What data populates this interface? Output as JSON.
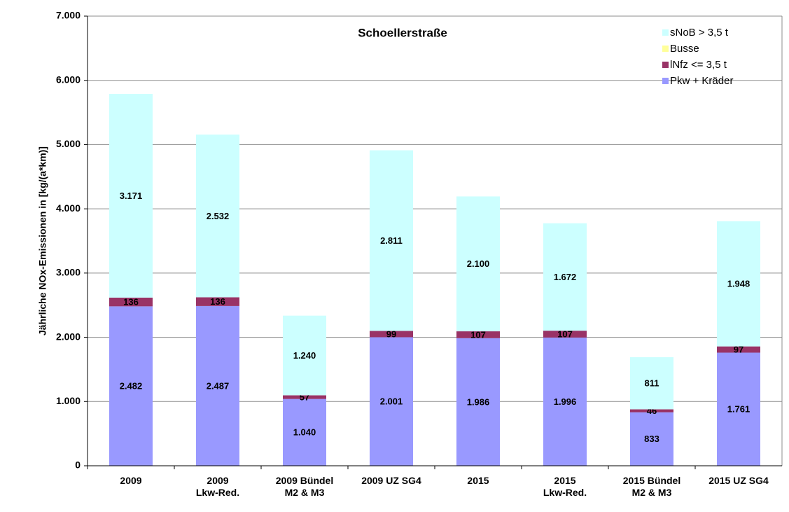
{
  "chart_data": {
    "type": "stacked_bar",
    "title": "Schoellerstraße",
    "y_label": "Jährliche NOx-Emissionen in [kg/(a*km)]",
    "categories": [
      "2009",
      "2009\nLkw-Red.",
      "2009 Bündel\nM2 & M3",
      "2009 UZ SG4",
      "2015",
      "2015\nLkw-Red.",
      "2015 Bündel\nM2 & M3",
      "2015 UZ SG4"
    ],
    "series": [
      {
        "name": "Pkw + Kräder",
        "color": "#9999ff",
        "values": [
          2482,
          2487,
          1040,
          2001,
          1986,
          1996,
          833,
          1761
        ],
        "value_labels": [
          "2.482",
          "2.487",
          "1.040",
          "2.001",
          "1.986",
          "1.996",
          "833",
          "1.761"
        ]
      },
      {
        "name": "lNfz <= 3,5 t",
        "color": "#993366",
        "values": [
          136,
          136,
          57,
          99,
          107,
          107,
          46,
          97
        ],
        "value_labels": [
          "136",
          "136",
          "57",
          "99",
          "107",
          "107",
          "46",
          "97"
        ]
      },
      {
        "name": "Busse",
        "color": "#ffff99",
        "values": [
          0,
          0,
          0,
          0,
          0,
          0,
          0,
          0
        ]
      },
      {
        "name": "sNoB > 3,5 t",
        "color": "#ccffff",
        "values": [
          3171,
          2532,
          1240,
          2811,
          2100,
          1672,
          811,
          1948
        ],
        "value_labels": [
          "3.171",
          "2.532",
          "1.240",
          "2.811",
          "2.100",
          "1.672",
          "811",
          "1.948"
        ]
      }
    ],
    "ylim": [
      0,
      7000
    ],
    "yticks": [
      0,
      {
        "value": 1000,
        "label": "1.000"
      },
      {
        "value": 2000,
        "label": "2.000"
      },
      {
        "value": 3000,
        "label": "3.000"
      },
      {
        "value": 4000,
        "label": "4.000"
      },
      {
        "value": 5000,
        "label": "5.000"
      },
      {
        "value": 6000,
        "label": "6.000"
      },
      {
        "value": 7000,
        "label": "7.000"
      }
    ],
    "grid": true,
    "legend": "upper right"
  }
}
